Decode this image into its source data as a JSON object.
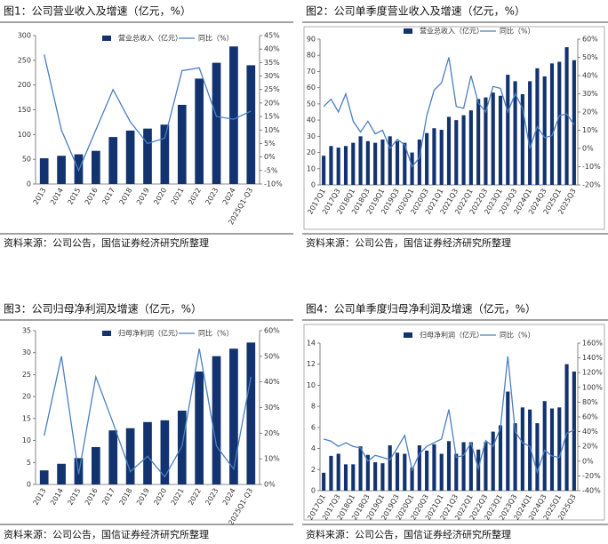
{
  "chart_data": [
    {
      "type": "bar",
      "title": "图1：公司营业收入及增速（亿元，%）",
      "source": "资料来源：公司公告，国信证券经济研究所整理",
      "categories": [
        "2013",
        "2014",
        "2015",
        "2016",
        "2017",
        "2018",
        "2019",
        "2020",
        "2021",
        "2022",
        "2023",
        "2024",
        "2025Q1-Q3"
      ],
      "series": [
        {
          "name": "营业总收入（亿元）",
          "color": "#123370",
          "values": [
            52,
            57,
            60,
            67,
            95,
            108,
            112,
            120,
            160,
            213,
            245,
            278,
            240
          ]
        },
        {
          "name": "同比（%）",
          "color": "#4a7fc1",
          "axis": "y2",
          "values": [
            38,
            10,
            -5,
            10,
            25,
            13,
            5,
            7,
            32,
            33,
            15,
            14,
            17
          ]
        }
      ],
      "ylim": [
        0,
        300
      ],
      "yticks": [
        0,
        50,
        100,
        150,
        200,
        250,
        300
      ],
      "y2lim": [
        -10,
        45
      ],
      "y2ticks": [
        {
          "value": -10,
          "label": "-10%"
        },
        {
          "value": -5,
          "label": "-5%"
        },
        {
          "value": 0,
          "label": "0%"
        },
        {
          "value": 5,
          "label": "5%"
        },
        {
          "value": 10,
          "label": "10%"
        },
        {
          "value": 15,
          "label": "15%"
        },
        {
          "value": 20,
          "label": "20%"
        },
        {
          "value": 25,
          "label": "25%"
        },
        {
          "value": 30,
          "label": "30%"
        },
        {
          "value": 35,
          "label": "35%"
        },
        {
          "value": 40,
          "label": "40%"
        },
        {
          "value": 45,
          "label": "45%"
        }
      ],
      "frame": false
    },
    {
      "type": "bar",
      "title": "图2：公司单季度营业收入及增速（亿元，%）",
      "source": "资料来源：公司公告，国信证券经济研究所整理",
      "categories": [
        "2017Q1",
        null,
        "2017Q3",
        null,
        "2018Q1",
        null,
        "2018Q3",
        null,
        "2019Q1",
        null,
        "2019Q3",
        null,
        "2020Q1",
        null,
        "2020Q3",
        null,
        "2021Q1",
        null,
        "2021Q3",
        null,
        "2022Q1",
        null,
        "2022Q3",
        null,
        "2023Q1",
        null,
        "2023Q3",
        null,
        "2024Q1",
        null,
        "2024Q3",
        null,
        "2025Q1",
        null,
        "2025Q3"
      ],
      "series": [
        {
          "name": "营业总收入（亿元）",
          "color": "#123370",
          "values": [
            18,
            24,
            23,
            24,
            26,
            30,
            27,
            26,
            28,
            30,
            27,
            26,
            20,
            28,
            32,
            35,
            34,
            42,
            40,
            43,
            46,
            53,
            54,
            57,
            55,
            68,
            64,
            56,
            64,
            72,
            67,
            75,
            76,
            85,
            77
          ]
        },
        {
          "name": "同比（%）",
          "color": "#4a7fc1",
          "axis": "y2",
          "values": [
            23,
            27,
            20,
            30,
            15,
            9,
            15,
            8,
            10,
            0,
            5,
            2,
            -10,
            -5,
            18,
            32,
            36,
            50,
            23,
            22,
            40,
            25,
            20,
            34,
            33,
            20,
            30,
            22,
            0,
            12,
            6,
            7,
            18,
            19,
            13
          ]
        }
      ],
      "ylim": [
        0,
        90
      ],
      "yticks": [
        0,
        10,
        20,
        30,
        40,
        50,
        60,
        70,
        80,
        90
      ],
      "y2lim": [
        -20,
        60
      ],
      "y2ticks": [
        {
          "value": -20,
          "label": "-20%"
        },
        {
          "value": -10,
          "label": "-10%"
        },
        {
          "value": 0,
          "label": "0%"
        },
        {
          "value": 10,
          "label": "10%"
        },
        {
          "value": 20,
          "label": "20%"
        },
        {
          "value": 30,
          "label": "30%"
        },
        {
          "value": 40,
          "label": "40%"
        },
        {
          "value": 50,
          "label": "50%"
        },
        {
          "value": 60,
          "label": "60%"
        }
      ],
      "frame": true
    },
    {
      "type": "bar",
      "title": "图3：公司归母净利润及增速（亿元，%）",
      "source": "资料来源：公司公告，国信证券经济研究所整理",
      "categories": [
        "2013",
        "2014",
        "2015",
        "2016",
        "2017",
        "2018",
        "2019",
        "2020",
        "2021",
        "2022",
        "2023",
        "2024",
        "2025Q1-Q3"
      ],
      "series": [
        {
          "name": "归母净利润（亿元）",
          "color": "#123370",
          "values": [
            3.2,
            4.7,
            6.0,
            8.5,
            12.3,
            12.8,
            14.2,
            14.6,
            16.8,
            25.7,
            29.2,
            30.9,
            32.3
          ]
        },
        {
          "name": "同比（%）",
          "color": "#4a7fc1",
          "axis": "y2",
          "values": [
            19,
            50,
            4,
            42,
            24,
            5,
            11,
            3,
            15,
            53,
            15,
            6,
            42
          ]
        }
      ],
      "ylim": [
        0,
        35
      ],
      "yticks": [
        0,
        5,
        10,
        15,
        20,
        25,
        30,
        35
      ],
      "y2lim": [
        0,
        60
      ],
      "y2ticks": [
        {
          "value": 0,
          "label": "0%"
        },
        {
          "value": 10,
          "label": "10%"
        },
        {
          "value": 20,
          "label": "20%"
        },
        {
          "value": 30,
          "label": "30%"
        },
        {
          "value": 40,
          "label": "40%"
        },
        {
          "value": 50,
          "label": "50%"
        },
        {
          "value": 60,
          "label": "60%"
        }
      ],
      "frame": false
    },
    {
      "type": "bar",
      "title": "图4：公司单季度归母净利润及增速（亿元，%）",
      "source": "资料来源：公司公告，国信证券经济研究所整理",
      "categories": [
        "2017Q1",
        null,
        "2017Q3",
        null,
        "2018Q1",
        null,
        "2018Q3",
        null,
        "2019Q1",
        null,
        "2019Q3",
        null,
        "2020Q1",
        null,
        "2020Q3",
        null,
        "2021Q1",
        null,
        "2021Q3",
        null,
        "2022Q1",
        null,
        "2022Q3",
        null,
        "2023Q1",
        null,
        "2023Q3",
        null,
        "2024Q1",
        null,
        "2024Q3",
        null,
        "2025Q1",
        null,
        "2025Q3"
      ],
      "series": [
        {
          "name": "归母净利润（亿元）",
          "color": "#123370",
          "values": [
            1.7,
            3.3,
            3.5,
            2.5,
            2.5,
            4.2,
            3.4,
            2.7,
            2.6,
            4.3,
            3.6,
            3.5,
            2.2,
            4.3,
            3.8,
            4.4,
            3.5,
            4.7,
            3.5,
            4.6,
            4.6,
            3.9,
            4.6,
            5.6,
            6.2,
            9.4,
            6.4,
            7.9,
            7.7,
            6.4,
            8.5,
            7.8,
            7.9,
            12.0,
            11.3
          ]
        },
        {
          "name": "同比（%）",
          "color": "#4a7fc1",
          "axis": "y2",
          "values": [
            30,
            27,
            20,
            25,
            20,
            18,
            0,
            8,
            5,
            2,
            18,
            35,
            -12,
            10,
            20,
            25,
            30,
            70,
            5,
            8,
            25,
            -10,
            28,
            20,
            45,
            142,
            40,
            25,
            20,
            -15,
            15,
            7,
            5,
            38,
            42
          ]
        }
      ],
      "ylim": [
        0,
        14
      ],
      "yticks": [
        0,
        2,
        4,
        6,
        8,
        10,
        12,
        14
      ],
      "y2lim": [
        -40,
        160
      ],
      "y2ticks": [
        {
          "value": -40,
          "label": "-40%"
        },
        {
          "value": -20,
          "label": "-20%"
        },
        {
          "value": 0,
          "label": "0%"
        },
        {
          "value": 20,
          "label": "20%"
        },
        {
          "value": 40,
          "label": "40%"
        },
        {
          "value": 60,
          "label": "60%"
        },
        {
          "value": 80,
          "label": "80%"
        },
        {
          "value": 100,
          "label": "100%"
        },
        {
          "value": 120,
          "label": "120%"
        },
        {
          "value": 140,
          "label": "140%"
        },
        {
          "value": 160,
          "label": "160%"
        }
      ],
      "frame": true
    }
  ]
}
